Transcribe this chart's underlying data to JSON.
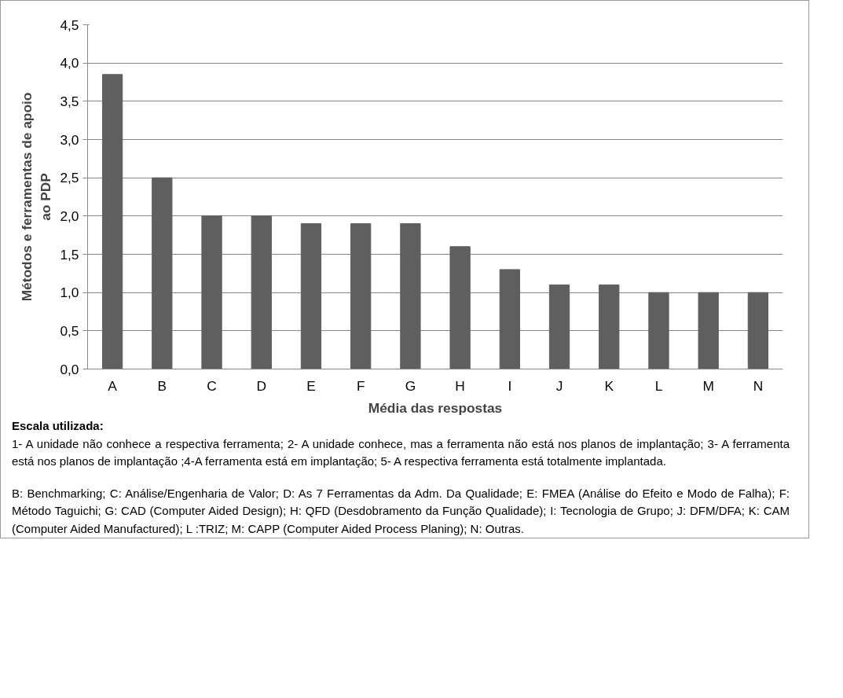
{
  "chart_data": {
    "type": "bar",
    "xlabel": "Média das respostas",
    "ylabel": "Métodos e ferramentas de apoio ao PDP",
    "categories": [
      "A",
      "B",
      "C",
      "D",
      "E",
      "F",
      "G",
      "H",
      "I",
      "J",
      "K",
      "L",
      "M",
      "N"
    ],
    "values": [
      3.85,
      2.5,
      2.0,
      2.0,
      1.9,
      1.9,
      1.9,
      1.6,
      1.3,
      1.1,
      1.1,
      1.0,
      1.0,
      1.0
    ],
    "color": "#5f5f5f",
    "ylim": [
      0,
      4.5
    ],
    "yticks": [
      {
        "value": 0,
        "label": "0,0"
      },
      {
        "value": 0.5,
        "label": "0,5"
      },
      {
        "value": 1,
        "label": "1,0"
      },
      {
        "value": 1.5,
        "label": "1,5"
      },
      {
        "value": 2,
        "label": "2,0"
      },
      {
        "value": 2.5,
        "label": "2,5"
      },
      {
        "value": 3,
        "label": "3,0"
      },
      {
        "value": 3.5,
        "label": "3,5"
      },
      {
        "value": 4,
        "label": "4,0"
      },
      {
        "value": 4.5,
        "label": "4,5"
      }
    ],
    "grid": "y",
    "annotations": [
      "Escala utilizada:",
      "1- A unidade não conhece a respectiva ferramenta; 2- A unidade conhece, mas a ferramenta não está nos planos de implantação; 3- A ferramenta está nos planos de implantação ;4-A ferramenta está em implantação; 5- A respectiva ferramenta está totalmente implantada.",
      "B: Benchmarking; C: Análise/Engenharia de Valor; D: As 7 Ferramentas da Adm. Da Qualidade; E: FMEA (Análise do Efeito e Modo de Falha); F: Método Taguichi; G: CAD (Computer Aided Design); H: QFD (Desdobramento da Função Qualidade); I: Tecnologia de Grupo; J: DFM/DFA; K: CAM (Computer Aided Manufactured); L :TRIZ; M: CAPP (Computer Aided Process Planing); N: Outras."
    ]
  }
}
